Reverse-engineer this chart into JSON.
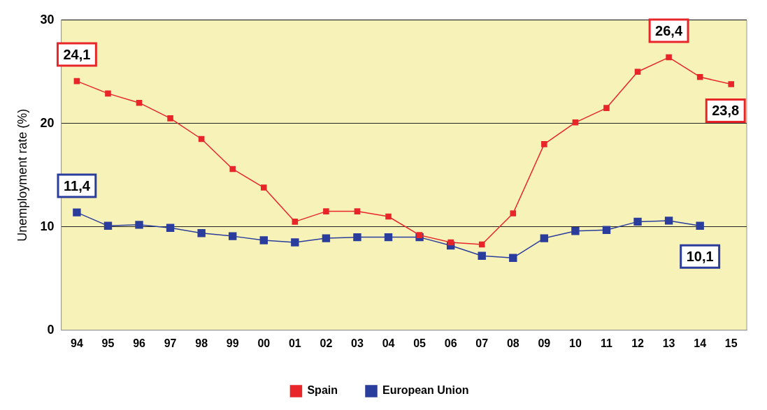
{
  "chart_data": {
    "type": "line",
    "ylabel": "Unemployment rate (%)",
    "categories": [
      "94",
      "95",
      "96",
      "97",
      "98",
      "99",
      "00",
      "01",
      "02",
      "03",
      "04",
      "05",
      "06",
      "07",
      "08",
      "09",
      "10",
      "11",
      "12",
      "13",
      "14",
      "15"
    ],
    "series": [
      {
        "name": "Spain",
        "color": "#e8262a",
        "values": [
          24.1,
          22.9,
          22.0,
          20.5,
          18.5,
          15.6,
          13.8,
          10.5,
          11.5,
          11.5,
          11.0,
          9.2,
          8.5,
          8.3,
          11.3,
          18.0,
          20.1,
          21.5,
          25.0,
          26.4,
          24.5,
          23.8
        ]
      },
      {
        "name": "European Union",
        "color": "#2b3d9c",
        "values": [
          11.4,
          10.1,
          10.2,
          9.9,
          9.4,
          9.1,
          8.7,
          8.5,
          8.9,
          9.0,
          9.0,
          9.0,
          8.2,
          7.2,
          7.0,
          8.9,
          9.6,
          9.7,
          10.5,
          10.6,
          10.1,
          null
        ]
      }
    ],
    "ylim": [
      0,
      30
    ],
    "yticks": [
      0,
      10,
      20,
      30
    ],
    "grid": "y",
    "legend": "bottom",
    "marker": "square",
    "line_style": "solid",
    "annotations": [
      {
        "text": "24,1",
        "x": "94",
        "y": 24.1
      },
      {
        "text": "11,4",
        "x": "94",
        "y": 11.4
      },
      {
        "text": "26,4",
        "x": "13",
        "y": 26.4
      },
      {
        "text": "23,8",
        "x": "15",
        "y": 23.8
      },
      {
        "text": "10,1",
        "x": "14",
        "y": 10.1
      }
    ]
  }
}
